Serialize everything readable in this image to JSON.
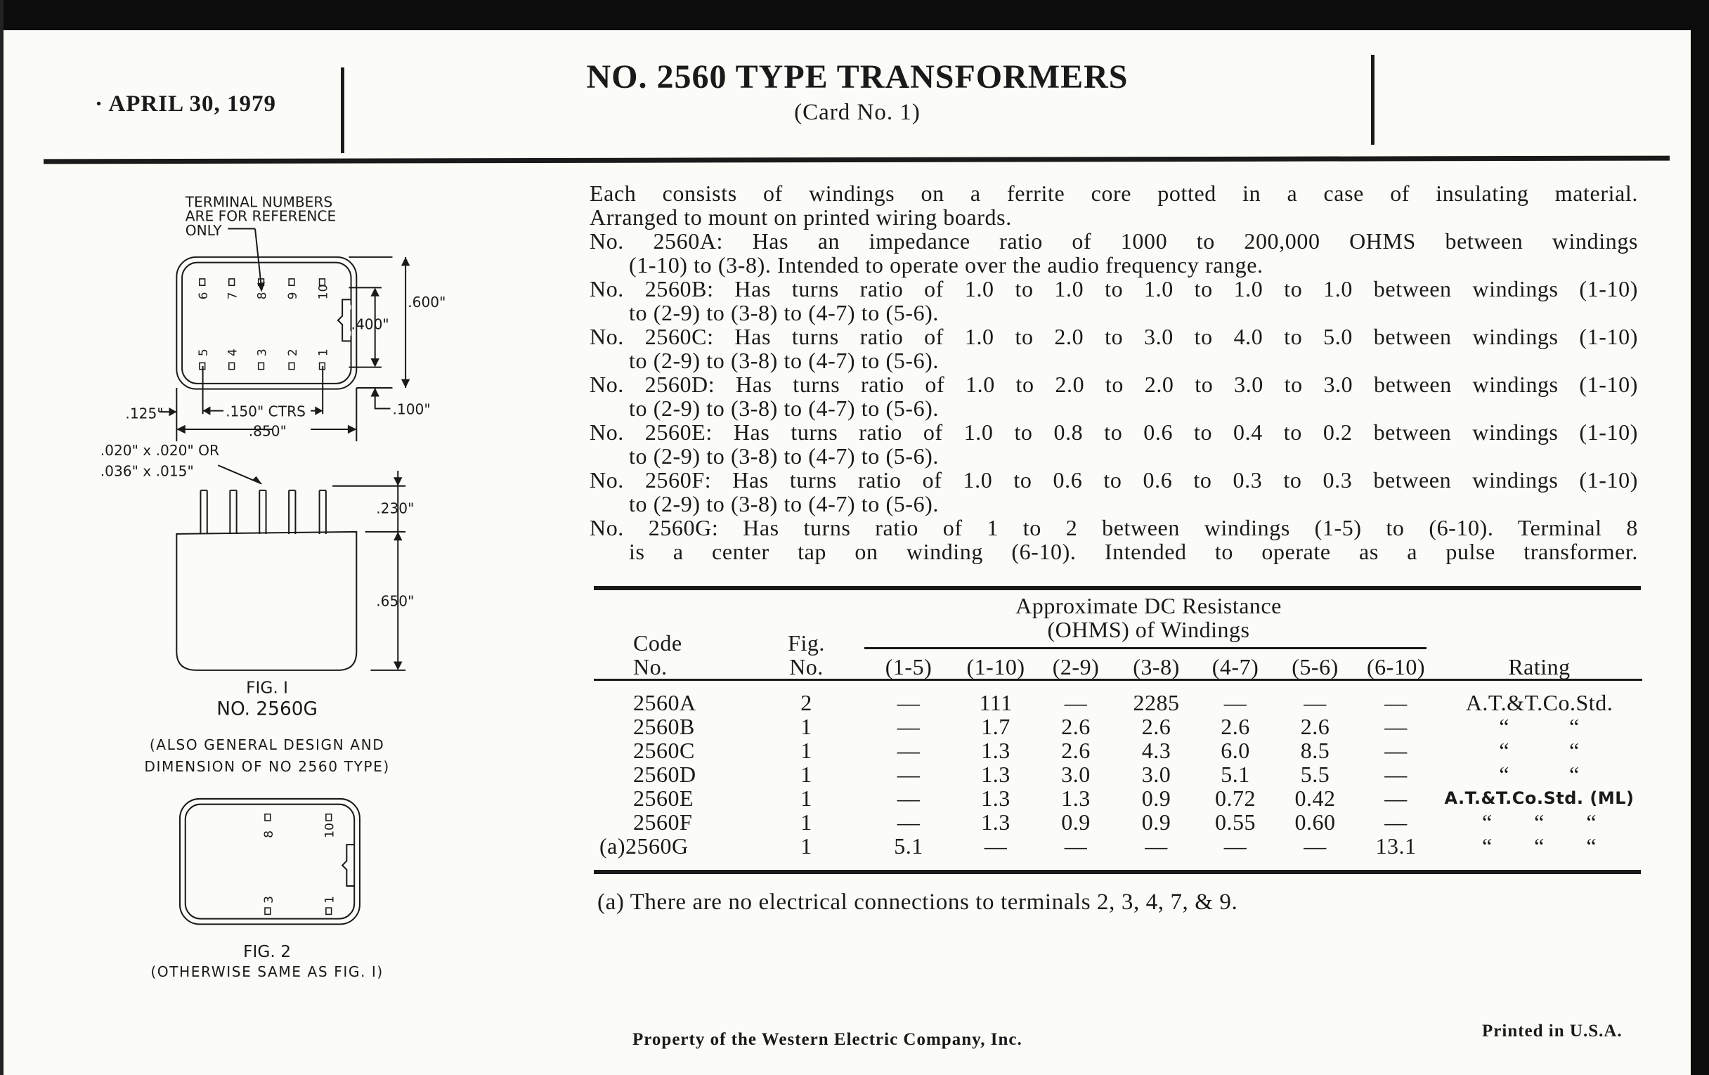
{
  "header": {
    "date": "· APRIL 30, 1979",
    "title": "NO. 2560 TYPE TRANSFORMERS",
    "subtitle": "(Card No. 1)"
  },
  "description": {
    "lines": [
      {
        "text": "Each consists of windings on a ferrite core potted in a case of insulating material.",
        "justify": true,
        "indent": false
      },
      {
        "text": "Arranged to mount on printed wiring boards.",
        "justify": false,
        "indent": false
      },
      {
        "text": "No. 2560A: Has an impedance ratio of 1000 to 200,000 OHMS between windings",
        "justify": true,
        "indent": false
      },
      {
        "text": "(1-10) to (3-8). Intended to operate over the audio frequency range.",
        "justify": false,
        "indent": true
      },
      {
        "text": "No. 2560B: Has turns ratio of 1.0 to 1.0 to 1.0 to 1.0 to 1.0 between windings (1-10)",
        "justify": true,
        "indent": false
      },
      {
        "text": "to (2-9) to (3-8) to (4-7) to (5-6).",
        "justify": false,
        "indent": true
      },
      {
        "text": "No. 2560C: Has turns ratio of 1.0 to 2.0 to 3.0 to 4.0 to 5.0 between windings (1-10)",
        "justify": true,
        "indent": false
      },
      {
        "text": "to (2-9) to (3-8) to (4-7) to (5-6).",
        "justify": false,
        "indent": true
      },
      {
        "text": "No. 2560D: Has turns ratio of 1.0 to 2.0 to 2.0 to 3.0 to 3.0 between windings (1-10)",
        "justify": true,
        "indent": false
      },
      {
        "text": "to (2-9) to (3-8) to (4-7) to (5-6).",
        "justify": false,
        "indent": true
      },
      {
        "text": "No. 2560E: Has turns ratio of 1.0 to 0.8 to 0.6 to 0.4 to 0.2 between windings (1-10)",
        "justify": true,
        "indent": false
      },
      {
        "text": "to (2-9) to (3-8) to (4-7) to (5-6).",
        "justify": false,
        "indent": true
      },
      {
        "text": "No. 2560F: Has turns ratio of 1.0 to 0.6 to 0.6 to 0.3 to 0.3 between windings (1-10)",
        "justify": true,
        "indent": false
      },
      {
        "text": "to (2-9) to (3-8) to (4-7) to (5-6).",
        "justify": false,
        "indent": true
      },
      {
        "text": "No. 2560G: Has turns ratio of 1 to 2 between windings (1-5) to (6-10). Terminal 8",
        "justify": true,
        "indent": false
      },
      {
        "text": "is a center tap on winding (6-10). Intended to operate as a pulse transformer.",
        "justify": true,
        "indent": true
      }
    ]
  },
  "table": {
    "group_header_1": "Approximate DC Resistance",
    "group_header_2": "(OHMS) of Windings",
    "code_header_1": "Code",
    "code_header_2": "No.",
    "fig_header_1": "Fig.",
    "fig_header_2": "No.",
    "winding_headers": [
      "(1-5)",
      "(1-10)",
      "(2-9)",
      "(3-8)",
      "(4-7)",
      "(5-6)",
      "(6-10)"
    ],
    "rating_header": "Rating",
    "rows": [
      {
        "code": "2560A",
        "fig": "2",
        "values": [
          "—",
          "111",
          "—",
          "2285",
          "—",
          "—",
          "—"
        ],
        "rating": "A.T.&T.Co.Std."
      },
      {
        "code": "2560B",
        "fig": "1",
        "values": [
          "—",
          "1.7",
          "2.6",
          "2.6",
          "2.6",
          "2.6",
          "—"
        ],
        "rating": "“          “"
      },
      {
        "code": "2560C",
        "fig": "1",
        "values": [
          "—",
          "1.3",
          "2.6",
          "4.3",
          "6.0",
          "8.5",
          "—"
        ],
        "rating": "“          “"
      },
      {
        "code": "2560D",
        "fig": "1",
        "values": [
          "—",
          "1.3",
          "3.0",
          "3.0",
          "5.1",
          "5.5",
          "—"
        ],
        "rating": "“          “"
      },
      {
        "code": "2560E",
        "fig": "1",
        "values": [
          "—",
          "1.3",
          "1.3",
          "0.9",
          "0.72",
          "0.42",
          "—"
        ],
        "rating": "A.T.&T.Co.Std. (ML)"
      },
      {
        "code": "2560F",
        "fig": "1",
        "values": [
          "—",
          "1.3",
          "0.9",
          "0.9",
          "0.55",
          "0.60",
          "—"
        ],
        "rating": "“       “       “"
      },
      {
        "code": "(a)2560G",
        "fig": "1",
        "values": [
          "5.1",
          "—",
          "—",
          "—",
          "—",
          "—",
          "13.1"
        ],
        "rating": "“       “       “"
      }
    ],
    "footnote": "(a) There are no electrical connections to terminals 2, 3, 4, 7, & 9."
  },
  "figure": {
    "note_1": "TERMINAL NUMBERS",
    "note_2": "ARE FOR REFERENCE",
    "note_3": "ONLY",
    "top_pins": [
      "6",
      "7",
      "8",
      "9",
      "10"
    ],
    "bottom_pins": [
      "5",
      "4",
      "3",
      "2",
      "1"
    ],
    "dim_600": ".600\"",
    "dim_400": ".400\"",
    "dim_100": ".100\"",
    "dim_125": ".125\"",
    "dim_150": ".150\" CTRS",
    "dim_850": ".850\"",
    "pin_size_1": ".020\" x .020\" OR",
    "pin_size_2": ".036\" x .015\"",
    "dim_230": ".230\"",
    "dim_650": ".650\"",
    "fig1_label": "FIG. I",
    "fig1_code": "NO. 2560G",
    "fig1_note_1": "(ALSO GENERAL DESIGN AND",
    "fig1_note_2": "DIMENSION OF NO 2560 TYPE)",
    "fig2_pins": [
      "8",
      "10",
      "3",
      "1"
    ],
    "fig2_label": "FIG. 2",
    "fig2_note": "(OTHERWISE SAME AS FIG. I)"
  },
  "footer": {
    "property": "Property of the Western Electric Company, Inc.",
    "printed": "Printed in U.S.A."
  }
}
